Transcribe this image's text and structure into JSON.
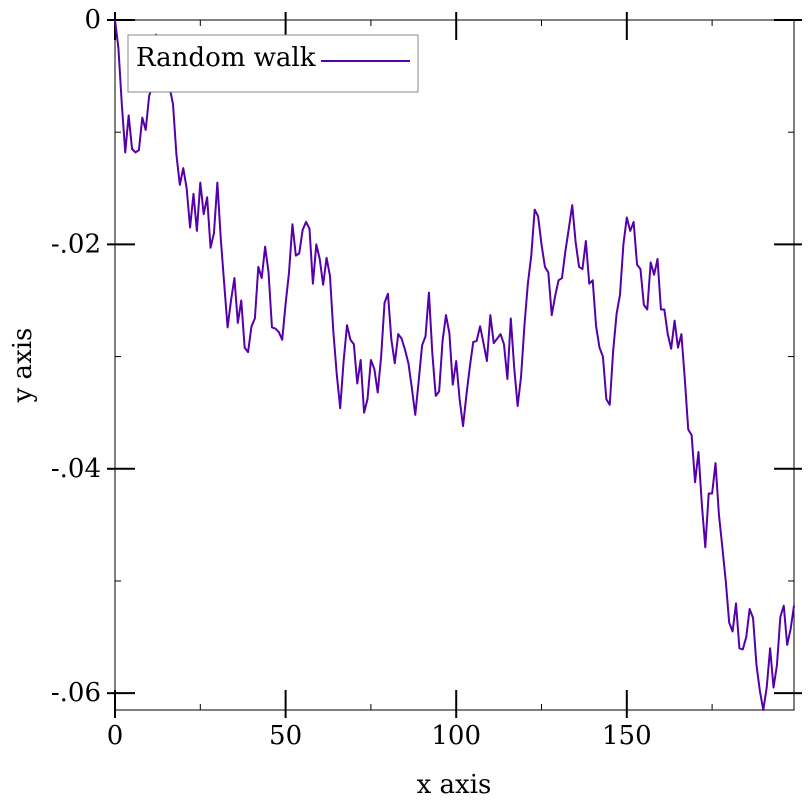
{
  "chart_data": {
    "type": "line",
    "title": "",
    "xlabel": "x axis",
    "ylabel": "y axis",
    "xlim": [
      0,
      199
    ],
    "ylim": [
      -0.0615,
      0
    ],
    "grid": false,
    "legend_position": "top-left",
    "x_ticks": [
      0,
      50,
      100,
      150
    ],
    "x_tick_labels": [
      "0",
      "50",
      "100",
      "150"
    ],
    "y_ticks": [
      0,
      -0.02,
      -0.04,
      -0.06
    ],
    "y_tick_labels": [
      "0",
      "-.02",
      "-.04",
      "-.06"
    ],
    "series": [
      {
        "name": "Random walk",
        "color": "#5500aa",
        "x": [
          0,
          1,
          2,
          3,
          4,
          5,
          6,
          7,
          8,
          9,
          10,
          11,
          12,
          13,
          14,
          15,
          16,
          17,
          18,
          19,
          20,
          21,
          22,
          23,
          24,
          25,
          26,
          27,
          28,
          29,
          30,
          31,
          32,
          33,
          34,
          35,
          36,
          37,
          38,
          39,
          40,
          41,
          42,
          43,
          44,
          45,
          46,
          47,
          48,
          49,
          50,
          51,
          52,
          53,
          54,
          55,
          56,
          57,
          58,
          59,
          60,
          61,
          62,
          63,
          64,
          65,
          66,
          67,
          68,
          69,
          70,
          71,
          72,
          73,
          74,
          75,
          76,
          77,
          78,
          79,
          80,
          81,
          82,
          83,
          84,
          85,
          86,
          87,
          88,
          89,
          90,
          91,
          92,
          93,
          94,
          95,
          96,
          97,
          98,
          99,
          100,
          101,
          102,
          103,
          104,
          105,
          106,
          107,
          108,
          109,
          110,
          111,
          112,
          113,
          114,
          115,
          116,
          117,
          118,
          119,
          120,
          121,
          122,
          123,
          124,
          125,
          126,
          127,
          128,
          129,
          130,
          131,
          132,
          133,
          134,
          135,
          136,
          137,
          138,
          139,
          140,
          141,
          142,
          143,
          144,
          145,
          146,
          147,
          148,
          149,
          150,
          151,
          152,
          153,
          154,
          155,
          156,
          157,
          158,
          159,
          160,
          161,
          162,
          163,
          164,
          165,
          166,
          167,
          168,
          169,
          170,
          171,
          172,
          173,
          174,
          175,
          176,
          177,
          178,
          179,
          180,
          181,
          182,
          183,
          184,
          185,
          186,
          187,
          188,
          189,
          190,
          191,
          192,
          193,
          194,
          195,
          196,
          197,
          198,
          199
        ],
        "y": [
          0.0,
          -0.0025,
          -0.0075,
          -0.0118,
          -0.0085,
          -0.0115,
          -0.0118,
          -0.0116,
          -0.0087,
          -0.0098,
          -0.0068,
          -0.0057,
          -0.0013,
          -0.0035,
          -0.002,
          -0.0045,
          -0.006,
          -0.0075,
          -0.012,
          -0.0147,
          -0.0132,
          -0.015,
          -0.0185,
          -0.0155,
          -0.0188,
          -0.0145,
          -0.0173,
          -0.0158,
          -0.0203,
          -0.019,
          -0.0145,
          -0.0195,
          -0.0235,
          -0.0274,
          -0.025,
          -0.023,
          -0.027,
          -0.025,
          -0.0292,
          -0.0296,
          -0.0273,
          -0.0266,
          -0.022,
          -0.023,
          -0.0202,
          -0.0225,
          -0.0274,
          -0.0275,
          -0.0278,
          -0.0285,
          -0.0253,
          -0.0225,
          -0.0182,
          -0.021,
          -0.0208,
          -0.0187,
          -0.018,
          -0.0186,
          -0.0235,
          -0.02,
          -0.0213,
          -0.0236,
          -0.0212,
          -0.0228,
          -0.0278,
          -0.0316,
          -0.0346,
          -0.0304,
          -0.0272,
          -0.0285,
          -0.0289,
          -0.0324,
          -0.0303,
          -0.035,
          -0.0338,
          -0.0303,
          -0.0311,
          -0.0332,
          -0.03,
          -0.0252,
          -0.0244,
          -0.0285,
          -0.0306,
          -0.028,
          -0.0284,
          -0.0294,
          -0.0306,
          -0.0328,
          -0.0352,
          -0.0322,
          -0.029,
          -0.0282,
          -0.0243,
          -0.0297,
          -0.0335,
          -0.0331,
          -0.0286,
          -0.0263,
          -0.0279,
          -0.0325,
          -0.0304,
          -0.0338,
          -0.0362,
          -0.0334,
          -0.0309,
          -0.0287,
          -0.0286,
          -0.0273,
          -0.0288,
          -0.0304,
          -0.0263,
          -0.0288,
          -0.0284,
          -0.028,
          -0.0289,
          -0.032,
          -0.0266,
          -0.031,
          -0.0344,
          -0.0318,
          -0.0272,
          -0.0235,
          -0.021,
          -0.0169,
          -0.0175,
          -0.02,
          -0.022,
          -0.0225,
          -0.0263,
          -0.0246,
          -0.0232,
          -0.023,
          -0.0206,
          -0.0186,
          -0.0165,
          -0.0198,
          -0.022,
          -0.0222,
          -0.0197,
          -0.0235,
          -0.0232,
          -0.0273,
          -0.0292,
          -0.03,
          -0.0338,
          -0.0343,
          -0.0295,
          -0.0262,
          -0.0245,
          -0.02,
          -0.0176,
          -0.0188,
          -0.018,
          -0.0218,
          -0.0222,
          -0.0254,
          -0.0258,
          -0.0216,
          -0.0227,
          -0.0213,
          -0.0258,
          -0.0258,
          -0.028,
          -0.0293,
          -0.0268,
          -0.0292,
          -0.028,
          -0.032,
          -0.0365,
          -0.037,
          -0.0412,
          -0.0385,
          -0.0432,
          -0.047,
          -0.0422,
          -0.0422,
          -0.0395,
          -0.0441,
          -0.047,
          -0.05,
          -0.0537,
          -0.0545,
          -0.052,
          -0.056,
          -0.0561,
          -0.055,
          -0.0525,
          -0.0533,
          -0.0575,
          -0.0598,
          -0.0615,
          -0.0595,
          -0.056,
          -0.0595,
          -0.0575,
          -0.0532,
          -0.0522,
          -0.0557,
          -0.0543,
          -0.0522
        ]
      }
    ]
  }
}
